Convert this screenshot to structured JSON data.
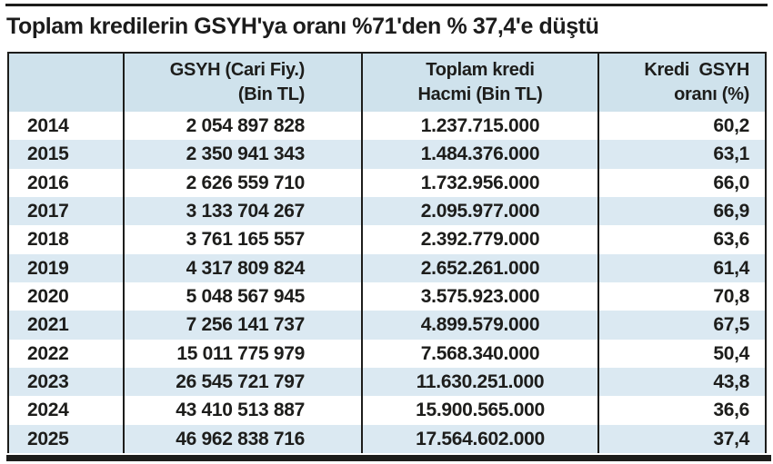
{
  "title": "Toplam kredilerin GSYH'ya oranı %71'den % 37,4'e düştü",
  "colors": {
    "header_bg": "#cfe2ec",
    "row_alt_bg": "#dbe9f2",
    "text": "#1d1d1b",
    "rule": "#1d1d1b"
  },
  "chart_data": {
    "type": "table",
    "title": "Toplam kredilerin GSYH'ya oranı %71'den % 37,4'e düştü",
    "header": {
      "year_line1": "",
      "year_line2": "",
      "gsyh_line1": "GSYH (Cari Fiy.)",
      "gsyh_line2": "(Bin TL)",
      "kredi_line1": "Toplam kredi",
      "kredi_line2": "Hacmi (Bin TL)",
      "oran_line1": "Kredi  GSYH",
      "oran_line2": "oranı (%)"
    },
    "rows": [
      {
        "year": "2014",
        "gsyh": "2 054 897 828",
        "kredi": "1.237.715.000",
        "oran": "60,2"
      },
      {
        "year": "2015",
        "gsyh": "2 350 941 343",
        "kredi": "1.484.376.000",
        "oran": "63,1"
      },
      {
        "year": "2016",
        "gsyh": "2 626 559 710",
        "kredi": "1.732.956.000",
        "oran": "66,0"
      },
      {
        "year": "2017",
        "gsyh": "3 133 704 267",
        "kredi": "2.095.977.000",
        "oran": "66,9"
      },
      {
        "year": "2018",
        "gsyh": "3 761 165 557",
        "kredi": "2.392.779.000",
        "oran": "63,6"
      },
      {
        "year": "2019",
        "gsyh": "4 317 809 824",
        "kredi": "2.652.261.000",
        "oran": "61,4"
      },
      {
        "year": "2020",
        "gsyh": "5 048 567 945",
        "kredi": "3.575.923.000",
        "oran": "70,8"
      },
      {
        "year": "2021",
        "gsyh": "7 256 141 737",
        "kredi": "4.899.579.000",
        "oran": "67,5"
      },
      {
        "year": "2022",
        "gsyh": "15 011 775 979",
        "kredi": "7.568.340.000",
        "oran": "50,4"
      },
      {
        "year": "2023",
        "gsyh": "26 545 721 797",
        "kredi": "11.630.251.000",
        "oran": "43,8"
      },
      {
        "year": "2024",
        "gsyh": "43 410 513 887",
        "kredi": "15.900.565.000",
        "oran": "36,6"
      },
      {
        "year": "2025",
        "gsyh": "46 962 838 716",
        "kredi": "17.564.602.000",
        "oran": "37,4"
      }
    ]
  }
}
